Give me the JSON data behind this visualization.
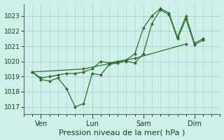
{
  "background_color": "#cff0e8",
  "grid_color": "#9dd8cc",
  "line_color": "#2d6e2d",
  "title": "Pression niveau de la mer( hPa )",
  "ylim": [
    1016.5,
    1023.8
  ],
  "yticks": [
    1017,
    1018,
    1019,
    1020,
    1021,
    1022,
    1023
  ],
  "xtick_labels": [
    "Ven",
    "Lun",
    "Sam",
    "Dim"
  ],
  "xtick_positions": [
    1,
    4,
    7,
    10
  ],
  "xlim": [
    0,
    11.5
  ],
  "series1_x": [
    0.5,
    1.0,
    1.5,
    2.0,
    2.5,
    3.0,
    3.5,
    4.0,
    4.5,
    5.0,
    5.5,
    6.0,
    6.5,
    7.0,
    7.5,
    8.0,
    8.5,
    9.0,
    9.5,
    10.0,
    10.5
  ],
  "series1_y": [
    1019.3,
    1018.8,
    1018.7,
    1018.9,
    1018.2,
    1017.0,
    1017.2,
    1019.2,
    1019.1,
    1019.8,
    1019.9,
    1020.0,
    1019.9,
    1020.5,
    1022.5,
    1023.4,
    1023.1,
    1021.5,
    1022.8,
    1021.1,
    1021.4
  ],
  "series2_x": [
    0.5,
    1.0,
    1.5,
    2.0,
    2.5,
    3.0,
    3.5,
    4.0,
    4.5,
    5.0,
    5.5,
    6.0,
    6.5,
    7.0,
    7.5,
    8.0,
    8.5,
    9.0,
    9.5,
    10.0,
    10.5
  ],
  "series2_y": [
    1019.3,
    1018.9,
    1019.0,
    1019.1,
    1019.2,
    1019.2,
    1019.3,
    1019.5,
    1020.0,
    1019.9,
    1020.0,
    1020.1,
    1020.5,
    1022.2,
    1023.0,
    1023.5,
    1023.2,
    1021.6,
    1023.0,
    1021.2,
    1021.5
  ],
  "series3_x": [
    0.5,
    3.5,
    6.5,
    9.5
  ],
  "series3_y": [
    1019.3,
    1019.5,
    1020.2,
    1021.15
  ],
  "title_fontsize": 8,
  "ytick_fontsize": 6.5,
  "xtick_fontsize": 7
}
